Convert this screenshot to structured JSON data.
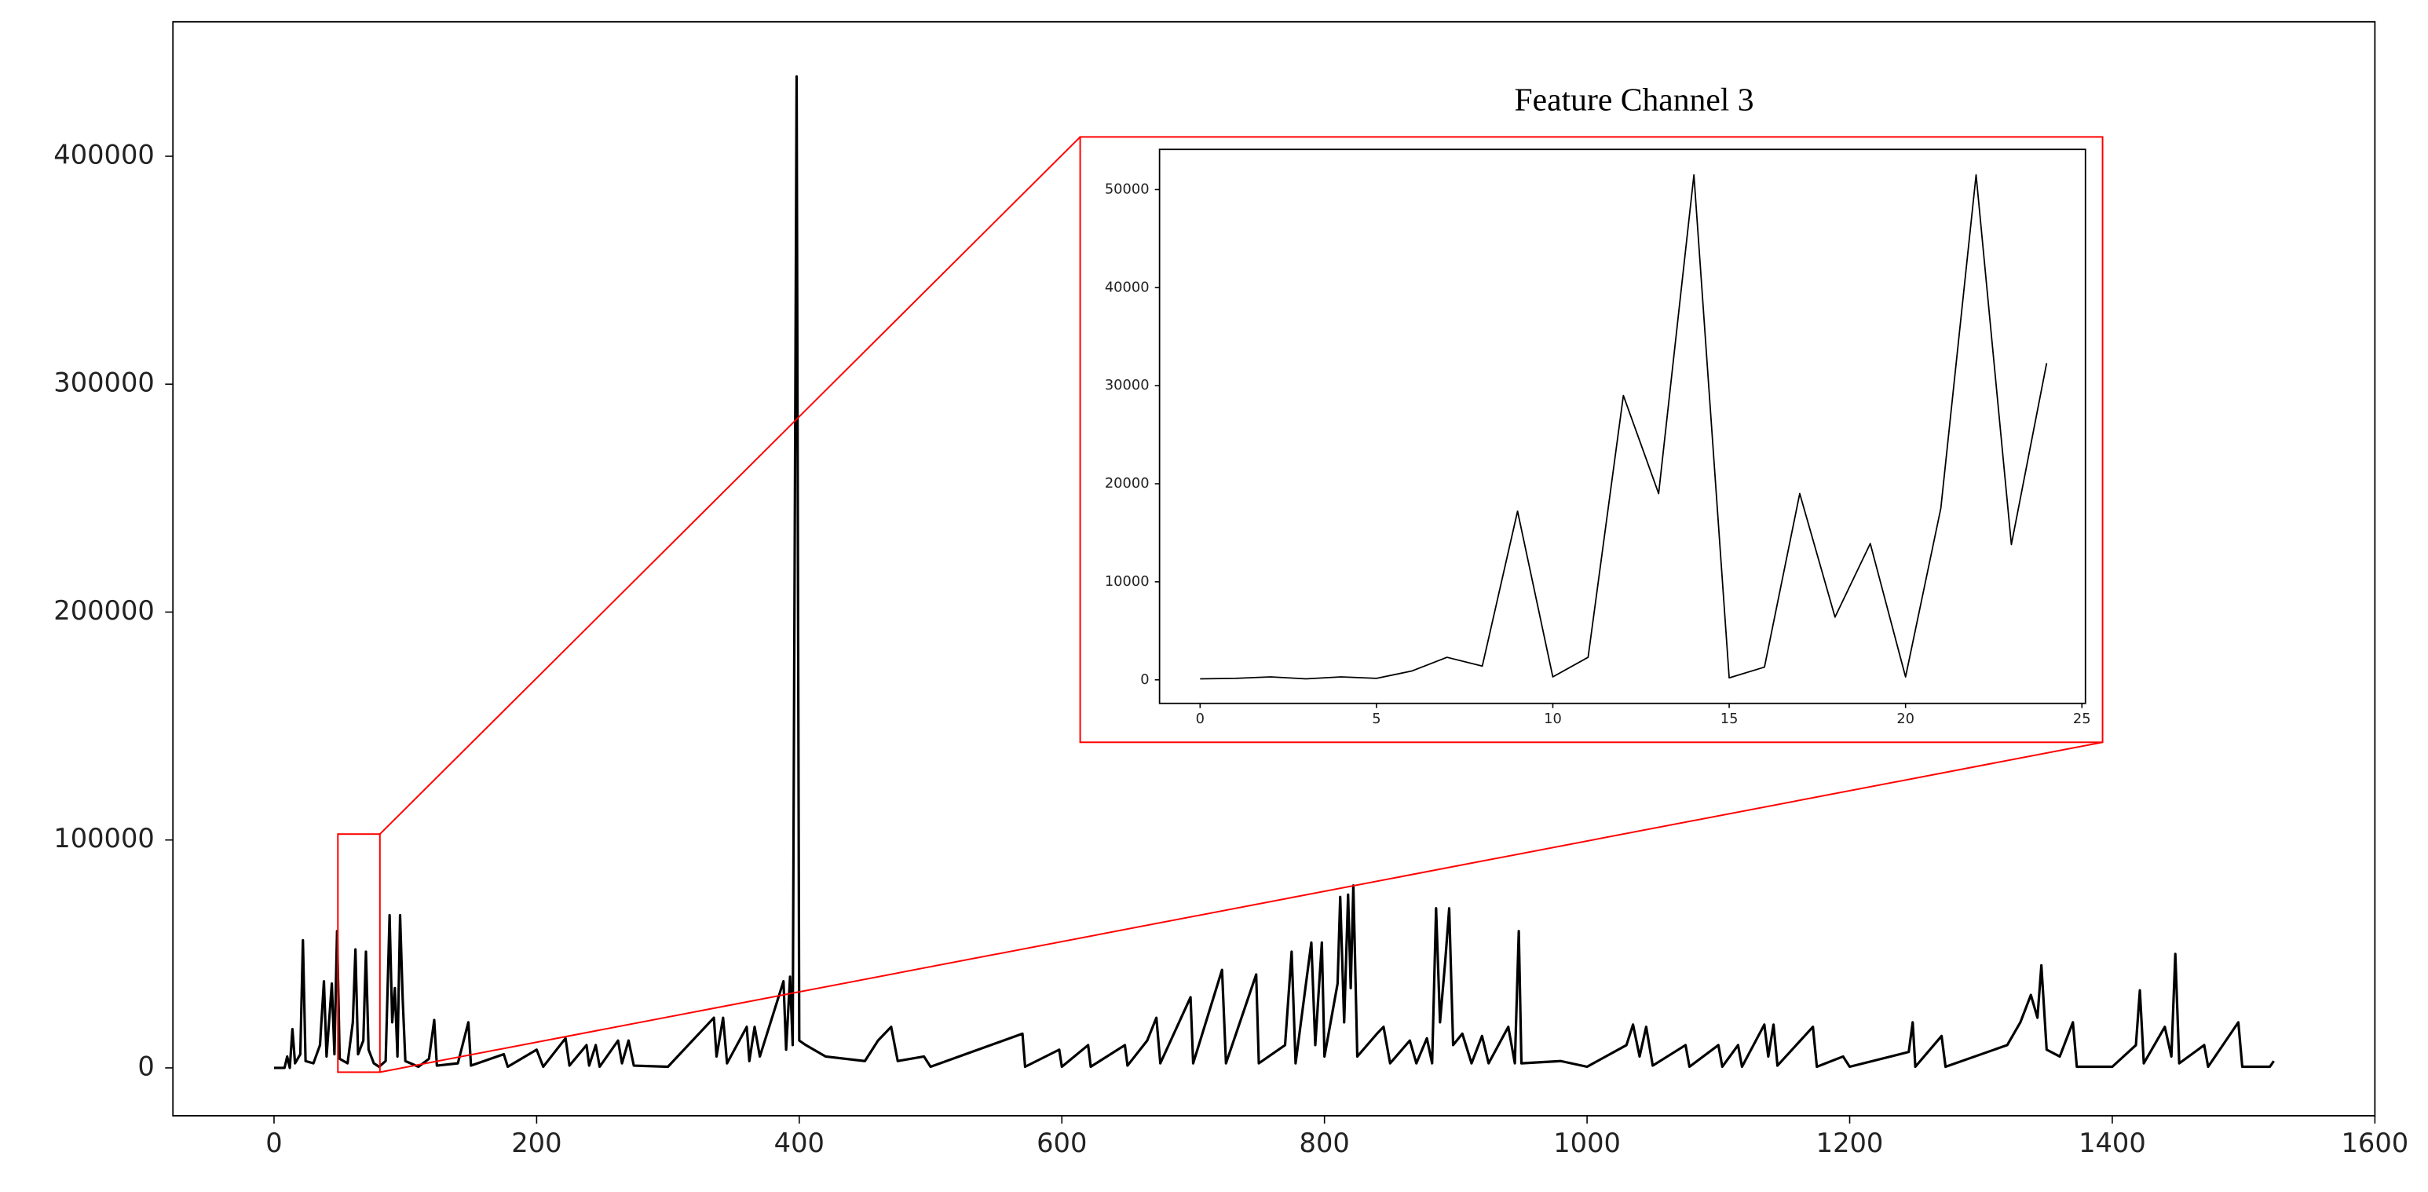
{
  "chart_data": [
    {
      "type": "line",
      "xlim": [
        -77,
        1600
      ],
      "ylim": [
        -21000,
        459000
      ],
      "xticks": [
        0,
        200,
        400,
        600,
        800,
        1000,
        1200,
        1400,
        1600
      ],
      "yticks": [
        0,
        100000,
        200000,
        300000,
        400000
      ],
      "color": "#000000",
      "x": [
        0,
        8,
        10,
        12,
        14,
        16,
        20,
        22,
        24,
        30,
        35,
        38,
        40,
        44,
        46,
        48,
        50,
        56,
        60,
        62,
        64,
        68,
        70,
        72,
        76,
        80,
        85,
        88,
        90,
        92,
        94,
        96,
        98,
        100,
        110,
        118,
        122,
        124,
        140,
        148,
        150,
        175,
        178,
        200,
        205,
        222,
        225,
        238,
        240,
        245,
        248,
        262,
        265,
        270,
        274,
        300,
        335,
        337,
        342,
        345,
        360,
        362,
        366,
        370,
        388,
        390,
        393,
        395,
        398,
        400,
        405,
        420,
        450,
        460,
        470,
        475,
        495,
        500,
        570,
        572,
        598,
        600,
        620,
        622,
        648,
        650,
        665,
        672,
        675,
        698,
        700,
        722,
        725,
        748,
        750,
        770,
        775,
        778,
        790,
        793,
        798,
        800,
        810,
        812,
        815,
        818,
        820,
        822,
        825,
        840,
        845,
        850,
        865,
        870,
        878,
        882,
        885,
        888,
        892,
        895,
        898,
        905,
        912,
        920,
        925,
        940,
        945,
        948,
        950,
        980,
        1000,
        1030,
        1035,
        1040,
        1045,
        1050,
        1075,
        1078,
        1100,
        1103,
        1115,
        1118,
        1135,
        1138,
        1142,
        1145,
        1172,
        1175,
        1195,
        1200,
        1245,
        1248,
        1250,
        1270,
        1273,
        1320,
        1330,
        1338,
        1343,
        1346,
        1350,
        1360,
        1370,
        1373,
        1400,
        1418,
        1421,
        1424,
        1440,
        1445,
        1448,
        1451,
        1470,
        1473,
        1496,
        1499,
        1520,
        1523
      ],
      "values": [
        0,
        0,
        5000,
        0,
        17000,
        2000,
        6000,
        56000,
        3000,
        2000,
        10000,
        38000,
        5000,
        37000,
        6000,
        60000,
        4000,
        2000,
        20000,
        52000,
        6000,
        12000,
        51000,
        8000,
        2000,
        500,
        3000,
        67000,
        20000,
        35000,
        5000,
        67000,
        30000,
        3000,
        500,
        4000,
        21000,
        1000,
        2000,
        20000,
        1000,
        6000,
        500,
        8000,
        500,
        13000,
        1000,
        10000,
        1000,
        10000,
        500,
        12000,
        2000,
        12000,
        1000,
        500,
        22000,
        5000,
        22000,
        2000,
        18000,
        3000,
        18000,
        5000,
        38000,
        8000,
        40000,
        10000,
        435000,
        12000,
        10000,
        5000,
        3000,
        12000,
        18000,
        3000,
        5000,
        500,
        15000,
        500,
        8000,
        500,
        10000,
        500,
        10000,
        1000,
        12000,
        22000,
        2000,
        31000,
        2000,
        43000,
        2000,
        41000,
        2000,
        10000,
        51000,
        2000,
        55000,
        10000,
        55000,
        5000,
        37000,
        75000,
        20000,
        76000,
        35000,
        80000,
        5000,
        15000,
        18000,
        2000,
        12000,
        2000,
        13000,
        2000,
        70000,
        20000,
        47000,
        70000,
        10000,
        15000,
        2000,
        14000,
        2000,
        18000,
        2000,
        60000,
        2000,
        3000,
        500,
        10000,
        19000,
        5000,
        18000,
        1000,
        10000,
        500,
        10000,
        500,
        10000,
        500,
        19000,
        5000,
        19000,
        1000,
        18000,
        500,
        5000,
        500,
        7000,
        20000,
        500,
        14000,
        500,
        10000,
        20000,
        32000,
        22000,
        45000,
        8000,
        5000,
        20000,
        500,
        500,
        10000,
        34000,
        2000,
        18000,
        5000,
        50000,
        2000,
        10000,
        500,
        20000,
        500,
        500,
        3000
      ]
    },
    {
      "type": "line",
      "title": "Feature Channel 3",
      "xlim": [
        -1.15,
        25.1
      ],
      "ylim": [
        -2400,
        54100
      ],
      "xticks": [
        0,
        5,
        10,
        15,
        20,
        25
      ],
      "yticks": [
        0,
        10000,
        20000,
        30000,
        40000,
        50000
      ],
      "color": "#000000",
      "x": [
        0,
        1,
        2,
        3,
        4,
        5,
        6,
        7,
        8,
        9,
        10,
        11,
        12,
        13,
        14,
        15,
        16,
        17,
        18,
        19,
        20,
        21,
        22,
        23,
        24
      ],
      "values": [
        100,
        150,
        300,
        100,
        300,
        150,
        900,
        2300,
        1400,
        17200,
        300,
        2300,
        29000,
        19000,
        51500,
        200,
        1300,
        19000,
        6400,
        13900,
        300,
        17500,
        51500,
        13800,
        32300
      ]
    }
  ]
}
